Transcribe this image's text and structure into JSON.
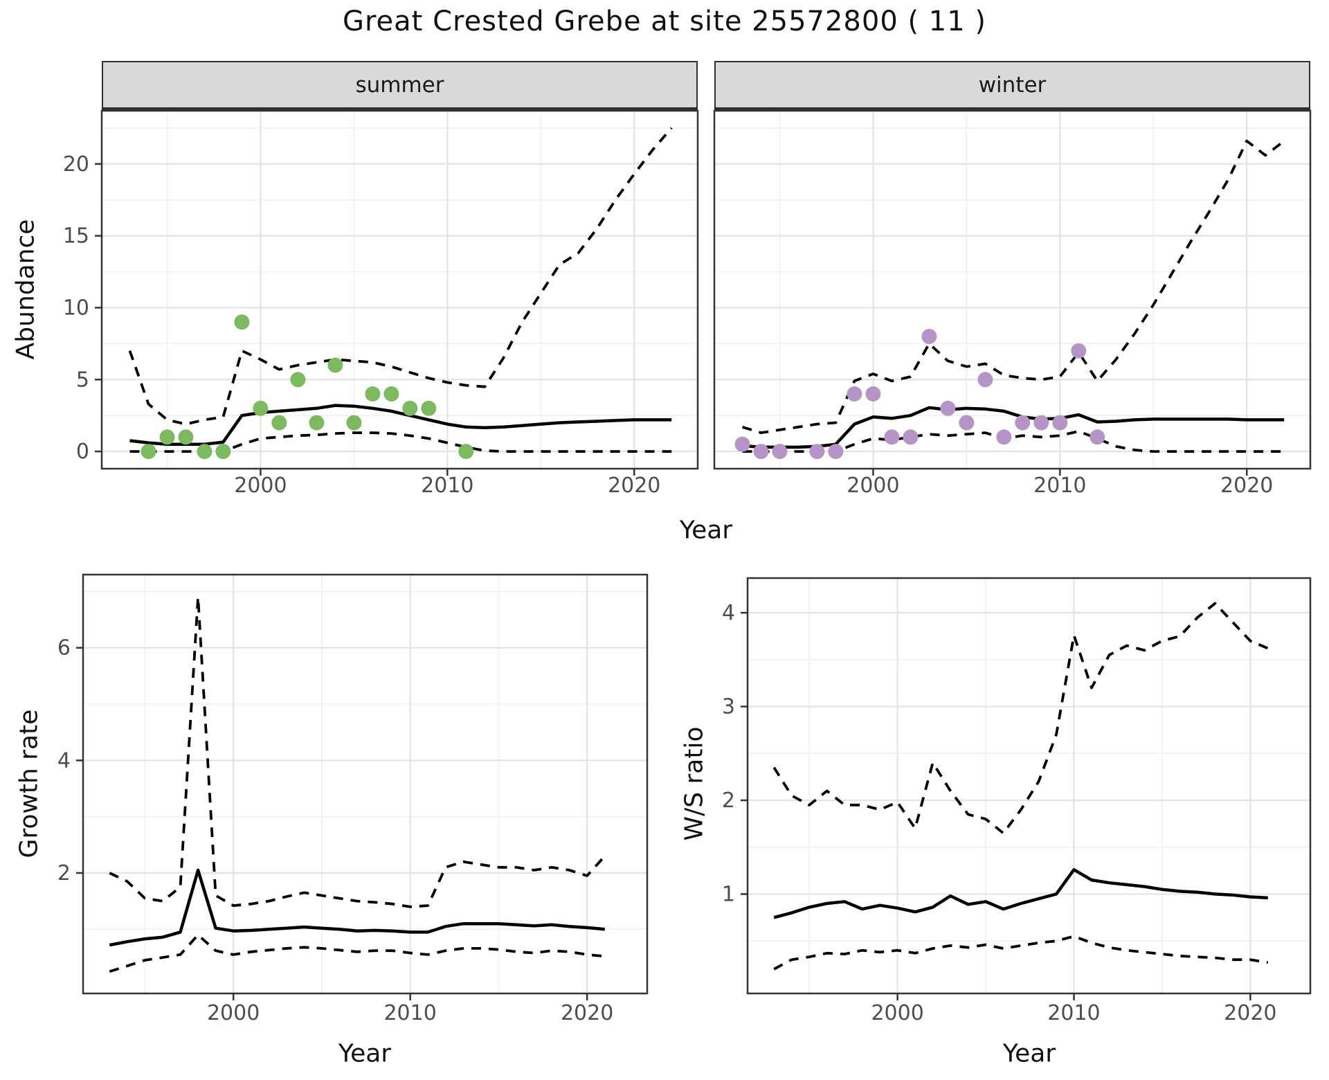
{
  "title": "Great Crested Grebe at site 25572800 ( 11 )",
  "colors": {
    "summer_point": "#7CB95F",
    "winter_point": "#B794C7",
    "line": "#000000",
    "strip_bg": "#D9D9D9",
    "panel_border": "#333333",
    "grid_major": "#E3E3E3",
    "grid_minor": "#F0F0F0",
    "tick_text": "#4D4D4D"
  },
  "chart_data": [
    {
      "id": "abundance-summer",
      "type": "line",
      "title": "summer",
      "xlabel": "Year",
      "ylabel": "Abundance",
      "xlim": [
        1991.5,
        2023.4
      ],
      "ylim": [
        -1.2,
        23.7
      ],
      "xticks": [
        2000,
        2010,
        2020
      ],
      "yticks": [
        0,
        5,
        10,
        15,
        20
      ],
      "grid": true,
      "legend": "none",
      "x": [
        1993,
        1994,
        1995,
        1996,
        1997,
        1998,
        1999,
        2000,
        2001,
        2002,
        2003,
        2004,
        2005,
        2006,
        2007,
        2008,
        2009,
        2010,
        2011,
        2012,
        2013,
        2014,
        2015,
        2016,
        2017,
        2018,
        2019,
        2020,
        2021,
        2022
      ],
      "series": [
        {
          "name": "fit",
          "style": "solid",
          "values": [
            0.75,
            0.6,
            0.5,
            0.5,
            0.5,
            0.65,
            2.5,
            2.7,
            2.8,
            2.9,
            3.0,
            3.2,
            3.15,
            3.0,
            2.8,
            2.5,
            2.2,
            1.9,
            1.7,
            1.65,
            1.7,
            1.8,
            1.9,
            2.0,
            2.05,
            2.1,
            2.15,
            2.2,
            2.2,
            2.2
          ]
        },
        {
          "name": "upper_ci",
          "style": "dashed",
          "values": [
            7.0,
            3.3,
            2.2,
            1.9,
            2.2,
            2.4,
            7.0,
            6.4,
            5.7,
            6.0,
            6.2,
            6.4,
            6.3,
            6.2,
            5.9,
            5.5,
            5.1,
            4.8,
            4.6,
            4.5,
            6.5,
            9.0,
            11.0,
            13.0,
            13.8,
            15.5,
            17.5,
            19.3,
            21.0,
            22.5
          ]
        },
        {
          "name": "lower_ci",
          "style": "dashed",
          "values": [
            0,
            0,
            0,
            0,
            0,
            0,
            0.5,
            0.9,
            1.0,
            1.1,
            1.15,
            1.25,
            1.3,
            1.3,
            1.25,
            1.1,
            0.9,
            0.6,
            0.3,
            0.05,
            0,
            0,
            0,
            0,
            0,
            0,
            0,
            0,
            0,
            0
          ]
        }
      ],
      "points": [
        [
          1994,
          0
        ],
        [
          1995,
          1
        ],
        [
          1996,
          1
        ],
        [
          1997,
          0
        ],
        [
          1998,
          0
        ],
        [
          1999,
          9
        ],
        [
          2000,
          3
        ],
        [
          2001,
          2
        ],
        [
          2002,
          5
        ],
        [
          2003,
          2
        ],
        [
          2004,
          6
        ],
        [
          2005,
          2
        ],
        [
          2006,
          4
        ],
        [
          2007,
          4
        ],
        [
          2008,
          3
        ],
        [
          2009,
          3
        ],
        [
          2011,
          0
        ]
      ],
      "point_color": "#7CB95F"
    },
    {
      "id": "abundance-winter",
      "type": "line",
      "title": "winter",
      "xlabel": "Year",
      "ylabel": "Abundance",
      "xlim": [
        1991.5,
        2023.4
      ],
      "ylim": [
        -1.2,
        23.7
      ],
      "xticks": [
        2000,
        2010,
        2020
      ],
      "yticks": [
        0,
        5,
        10,
        15,
        20
      ],
      "grid": true,
      "legend": "none",
      "x": [
        1993,
        1994,
        1995,
        1996,
        1997,
        1998,
        1999,
        2000,
        2001,
        2002,
        2003,
        2004,
        2005,
        2006,
        2007,
        2008,
        2009,
        2010,
        2011,
        2012,
        2013,
        2014,
        2015,
        2016,
        2017,
        2018,
        2019,
        2020,
        2021,
        2022
      ],
      "series": [
        {
          "name": "fit",
          "style": "solid",
          "values": [
            0.4,
            0.3,
            0.3,
            0.3,
            0.35,
            0.5,
            1.9,
            2.4,
            2.3,
            2.5,
            3.05,
            2.9,
            3.0,
            2.95,
            2.8,
            2.4,
            2.25,
            2.3,
            2.55,
            2.05,
            2.1,
            2.2,
            2.25,
            2.25,
            2.25,
            2.25,
            2.25,
            2.2,
            2.2,
            2.2
          ]
        },
        {
          "name": "upper_ci",
          "style": "dashed",
          "values": [
            1.7,
            1.3,
            1.5,
            1.7,
            1.9,
            2.0,
            4.9,
            5.4,
            4.9,
            5.2,
            7.5,
            6.3,
            5.9,
            6.1,
            5.3,
            5.1,
            5.0,
            5.2,
            6.9,
            4.9,
            6.4,
            8.2,
            10.2,
            12.4,
            14.6,
            16.7,
            18.9,
            21.6,
            20.6,
            21.6
          ]
        },
        {
          "name": "lower_ci",
          "style": "dashed",
          "values": [
            0,
            0,
            0,
            0,
            0,
            0,
            0.5,
            0.9,
            0.8,
            1.0,
            1.2,
            1.1,
            1.2,
            1.3,
            0.9,
            1.1,
            1.0,
            1.1,
            1.4,
            0.9,
            0.35,
            0.1,
            0,
            0,
            0,
            0,
            0,
            0,
            0,
            0
          ]
        }
      ],
      "points": [
        [
          1993,
          0.5
        ],
        [
          1994,
          0
        ],
        [
          1995,
          0
        ],
        [
          1997,
          0
        ],
        [
          1998,
          0
        ],
        [
          1999,
          4
        ],
        [
          2000,
          4
        ],
        [
          2001,
          1
        ],
        [
          2002,
          1
        ],
        [
          2003,
          8
        ],
        [
          2004,
          3
        ],
        [
          2005,
          2
        ],
        [
          2006,
          5
        ],
        [
          2007,
          1
        ],
        [
          2008,
          2
        ],
        [
          2009,
          2
        ],
        [
          2010,
          2
        ],
        [
          2011,
          7
        ],
        [
          2012,
          1
        ]
      ],
      "point_color": "#B794C7"
    },
    {
      "id": "growth-rate",
      "type": "line",
      "title": "",
      "xlabel": "Year",
      "ylabel": "Growth rate",
      "xlim": [
        1991.5,
        2023.4
      ],
      "ylim": [
        -0.14,
        7.3
      ],
      "xticks": [
        2000,
        2010,
        2020
      ],
      "yticks": [
        2,
        4,
        6
      ],
      "grid": true,
      "legend": "none",
      "x": [
        1993,
        1994,
        1995,
        1996,
        1997,
        1998,
        1999,
        2000,
        2001,
        2002,
        2003,
        2004,
        2005,
        2006,
        2007,
        2008,
        2009,
        2010,
        2011,
        2012,
        2013,
        2014,
        2015,
        2016,
        2017,
        2018,
        2019,
        2020,
        2021
      ],
      "series": [
        {
          "name": "fit",
          "style": "solid",
          "values": [
            0.72,
            0.78,
            0.83,
            0.86,
            0.95,
            2.05,
            1.02,
            0.97,
            0.98,
            1.0,
            1.02,
            1.04,
            1.02,
            1.0,
            0.97,
            0.98,
            0.97,
            0.95,
            0.95,
            1.05,
            1.1,
            1.1,
            1.1,
            1.08,
            1.06,
            1.08,
            1.05,
            1.03,
            1.0
          ]
        },
        {
          "name": "upper_ci",
          "style": "dashed",
          "values": [
            2.0,
            1.85,
            1.55,
            1.5,
            1.75,
            6.9,
            1.6,
            1.42,
            1.45,
            1.5,
            1.58,
            1.65,
            1.6,
            1.55,
            1.5,
            1.48,
            1.45,
            1.4,
            1.42,
            2.1,
            2.2,
            2.15,
            2.1,
            2.1,
            2.05,
            2.1,
            2.05,
            1.95,
            2.3
          ]
        },
        {
          "name": "lower_ci",
          "style": "dashed",
          "values": [
            0.25,
            0.35,
            0.45,
            0.5,
            0.55,
            0.9,
            0.62,
            0.55,
            0.6,
            0.63,
            0.66,
            0.68,
            0.66,
            0.63,
            0.6,
            0.62,
            0.62,
            0.58,
            0.55,
            0.62,
            0.66,
            0.66,
            0.64,
            0.6,
            0.58,
            0.62,
            0.6,
            0.55,
            0.52
          ]
        }
      ],
      "points": [],
      "point_color": "#000000"
    },
    {
      "id": "ws-ratio",
      "type": "line",
      "title": "",
      "xlabel": "Year",
      "ylabel": "W/S ratio",
      "xlim": [
        1991.5,
        2023.4
      ],
      "ylim": [
        -0.06,
        4.37
      ],
      "xticks": [
        2000,
        2010,
        2020
      ],
      "yticks": [
        1,
        2,
        3,
        4
      ],
      "grid": true,
      "legend": "none",
      "x": [
        1993,
        1994,
        1995,
        1996,
        1997,
        1998,
        1999,
        2000,
        2001,
        2002,
        2003,
        2004,
        2005,
        2006,
        2007,
        2008,
        2009,
        2010,
        2011,
        2012,
        2013,
        2014,
        2015,
        2016,
        2017,
        2018,
        2019,
        2020,
        2021
      ],
      "series": [
        {
          "name": "fit",
          "style": "solid",
          "values": [
            0.75,
            0.8,
            0.86,
            0.9,
            0.92,
            0.84,
            0.88,
            0.85,
            0.81,
            0.86,
            0.98,
            0.89,
            0.92,
            0.84,
            0.9,
            0.95,
            1.0,
            1.26,
            1.15,
            1.12,
            1.1,
            1.08,
            1.05,
            1.03,
            1.02,
            1.0,
            0.99,
            0.97,
            0.96
          ]
        },
        {
          "name": "upper_ci",
          "style": "dashed",
          "values": [
            2.35,
            2.05,
            1.95,
            2.1,
            1.95,
            1.95,
            1.9,
            1.98,
            1.7,
            2.4,
            2.1,
            1.85,
            1.8,
            1.65,
            1.9,
            2.2,
            2.7,
            3.76,
            3.2,
            3.55,
            3.65,
            3.6,
            3.7,
            3.75,
            3.95,
            4.1,
            3.9,
            3.7,
            3.62
          ]
        },
        {
          "name": "lower_ci",
          "style": "dashed",
          "values": [
            0.2,
            0.3,
            0.33,
            0.37,
            0.36,
            0.4,
            0.38,
            0.4,
            0.37,
            0.42,
            0.45,
            0.43,
            0.46,
            0.42,
            0.45,
            0.48,
            0.5,
            0.55,
            0.48,
            0.43,
            0.4,
            0.38,
            0.36,
            0.34,
            0.33,
            0.32,
            0.3,
            0.3,
            0.27
          ]
        }
      ],
      "points": [],
      "point_color": "#000000"
    }
  ]
}
